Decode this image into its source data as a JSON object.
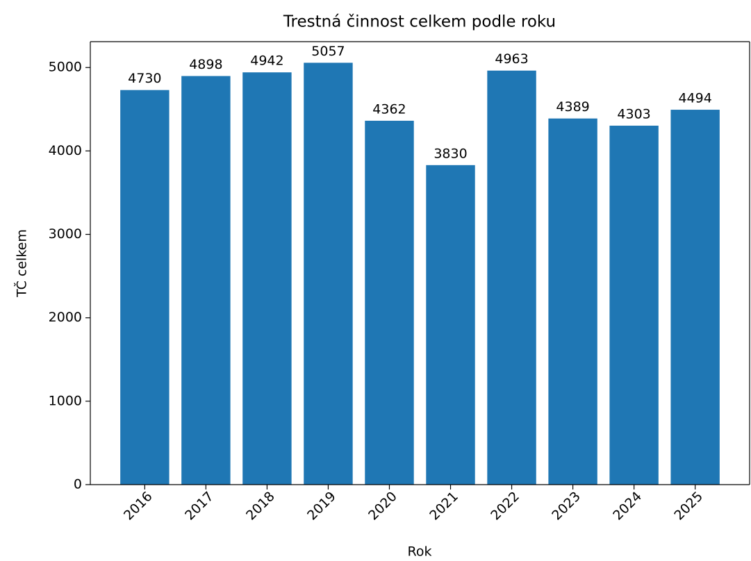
{
  "chart_data": {
    "type": "bar",
    "title": "Trestná činnost celkem podle roku",
    "x_label": "Rok",
    "y_label": "TČ celkem",
    "categories": [
      "2016",
      "2017",
      "2018",
      "2019",
      "2020",
      "2021",
      "2022",
      "2023",
      "2024",
      "2025"
    ],
    "values": [
      4730,
      4898,
      4942,
      5057,
      4362,
      3830,
      4963,
      4389,
      4303,
      4494
    ],
    "color": "#1f77b4",
    "ylim": [
      0,
      5310
    ],
    "yticks": [
      0,
      1000,
      2000,
      3000,
      4000,
      5000
    ],
    "grid": false
  }
}
